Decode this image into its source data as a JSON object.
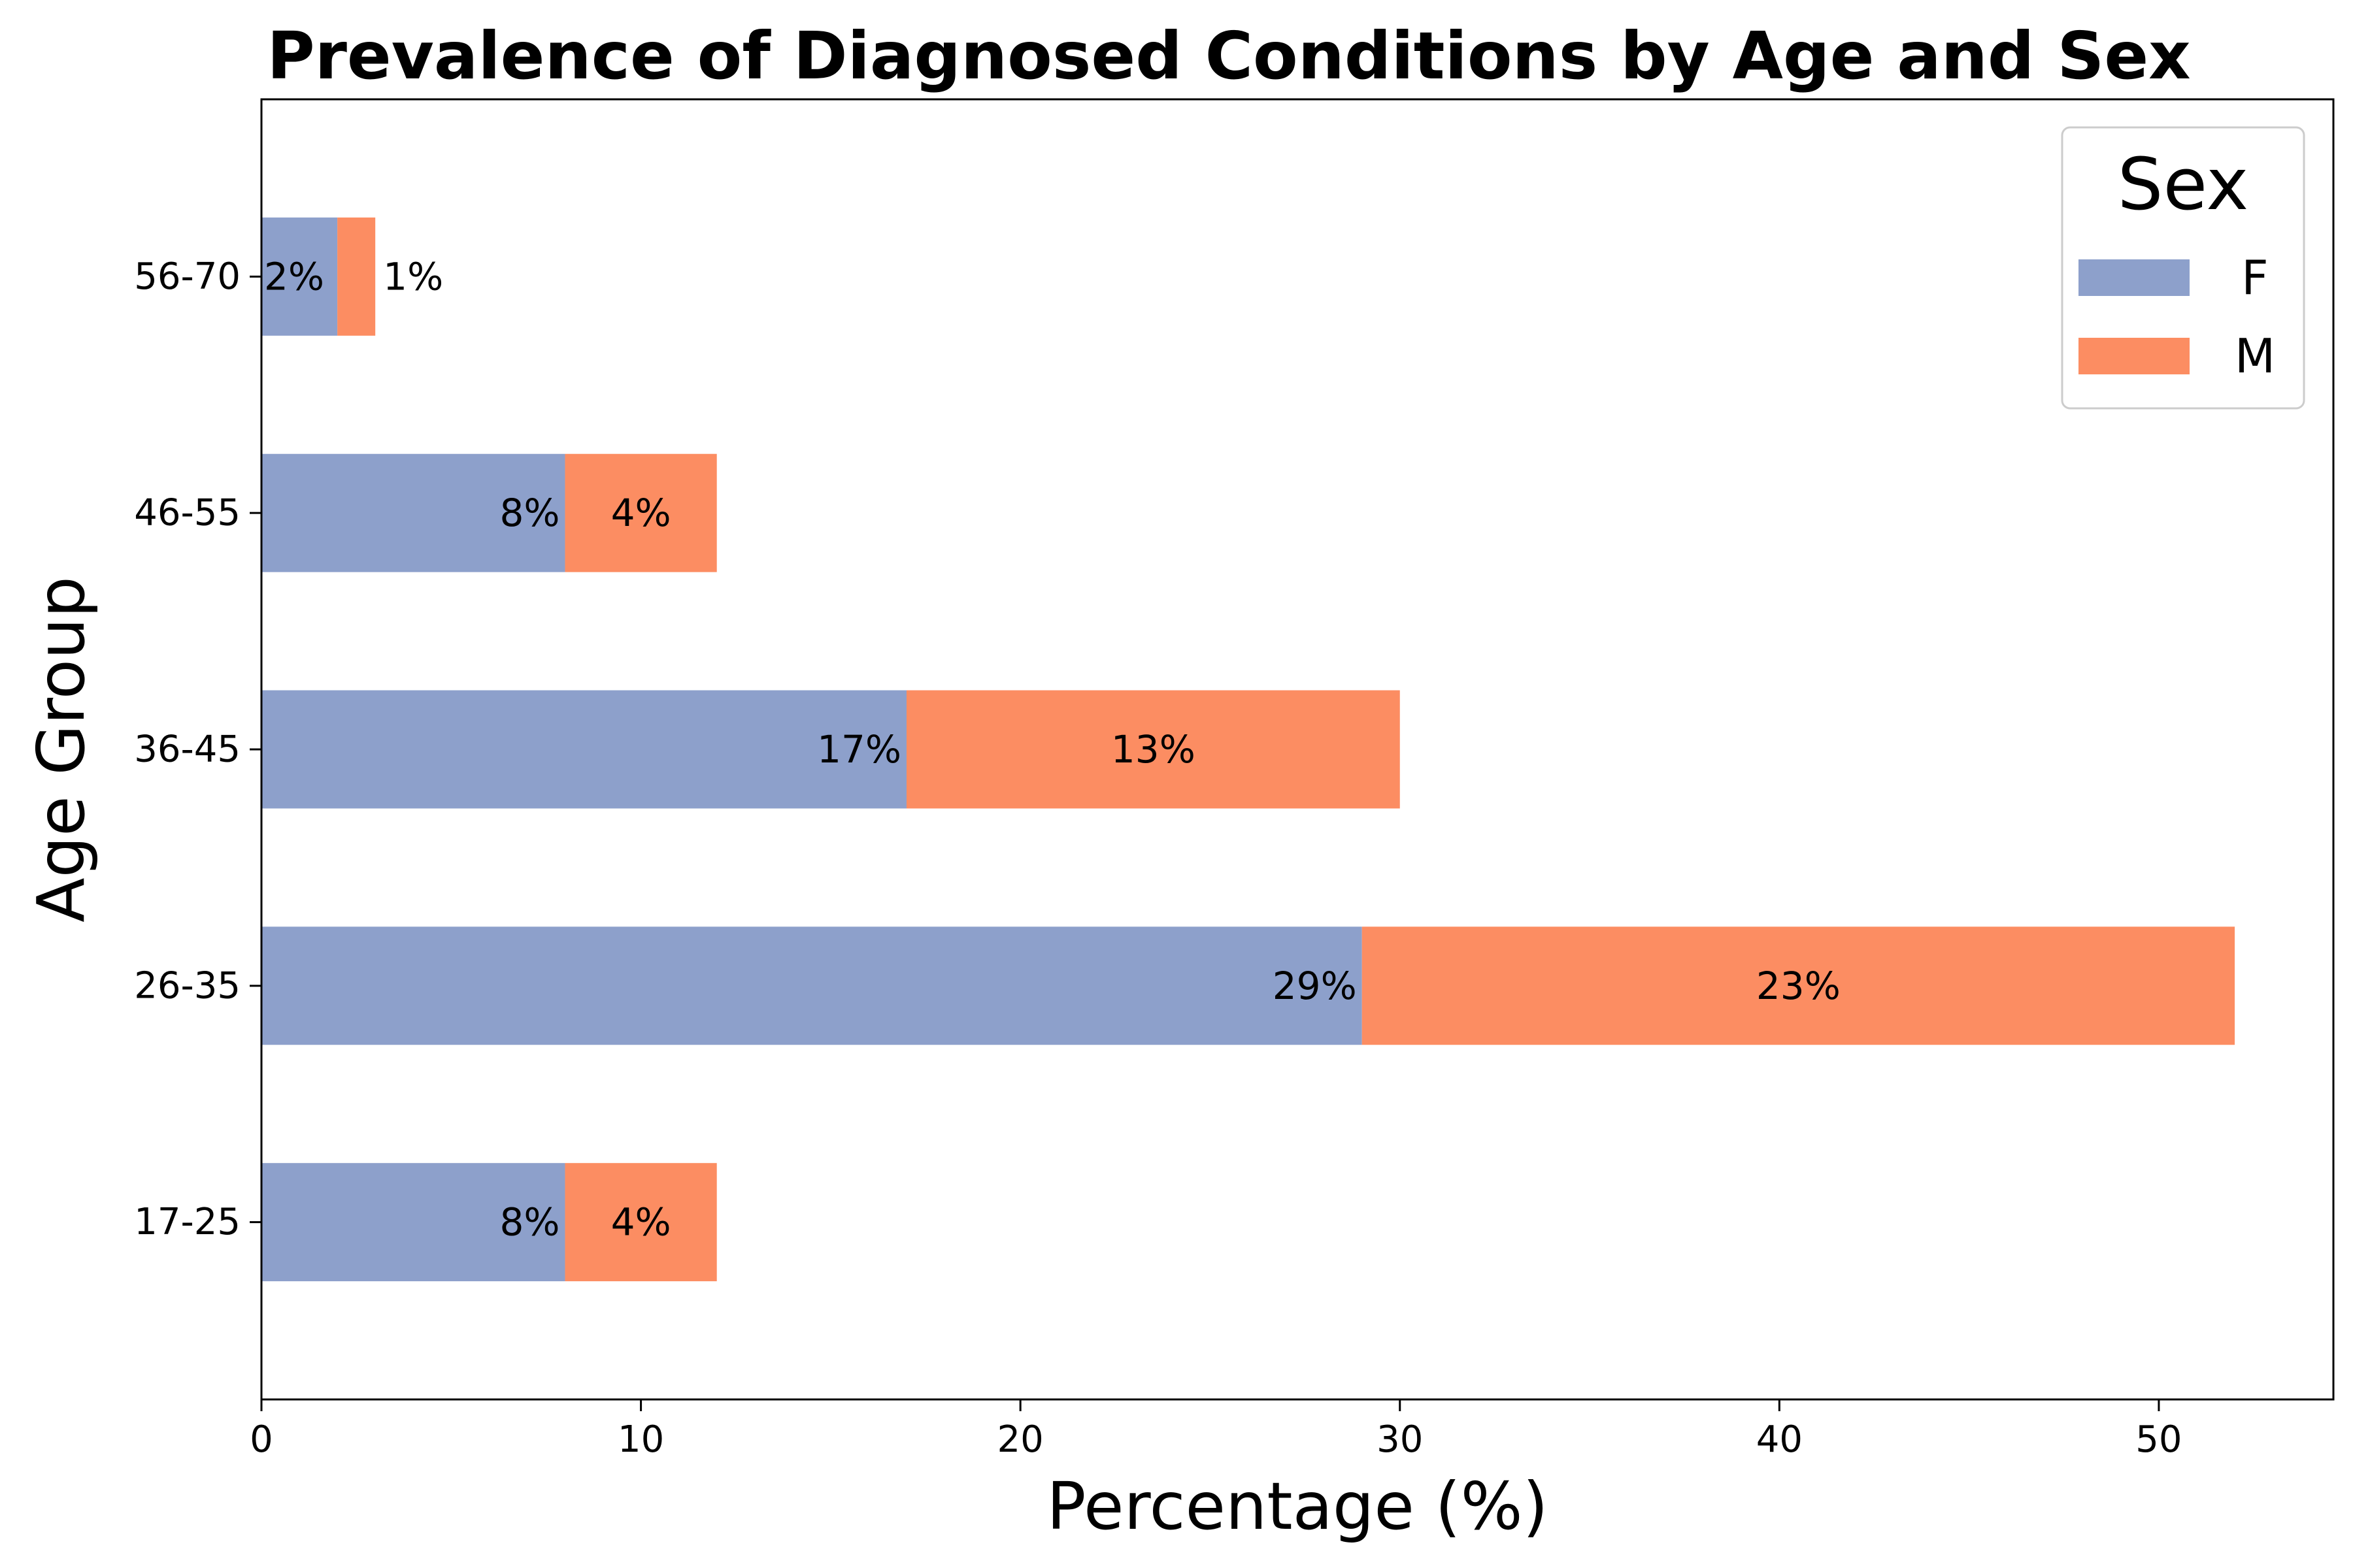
{
  "chart_data": {
    "type": "bar",
    "orientation": "horizontal",
    "stacked": true,
    "title": "Prevalence of Diagnosed Conditions by Age and Sex",
    "xlabel": "Percentage (%)",
    "ylabel": "Age Group",
    "categories": [
      "17-25",
      "26-35",
      "36-45",
      "46-55",
      "56-70"
    ],
    "series": [
      {
        "name": "F",
        "color": "#8da0cb",
        "values": [
          8,
          29,
          17,
          8,
          2
        ],
        "labels": [
          "8%",
          "29%",
          "17%",
          "8%",
          "2%"
        ]
      },
      {
        "name": "M",
        "color": "#fc8d62",
        "values": [
          4,
          23,
          13,
          4,
          1
        ],
        "labels": [
          "4%",
          "23%",
          "13%",
          "4%",
          "1%"
        ]
      }
    ],
    "xlim": [
      0,
      54.6
    ],
    "xticks": [
      0,
      10,
      20,
      30,
      40,
      50
    ],
    "grid": false,
    "legend": {
      "title": "Sex",
      "position": "top-right"
    }
  }
}
